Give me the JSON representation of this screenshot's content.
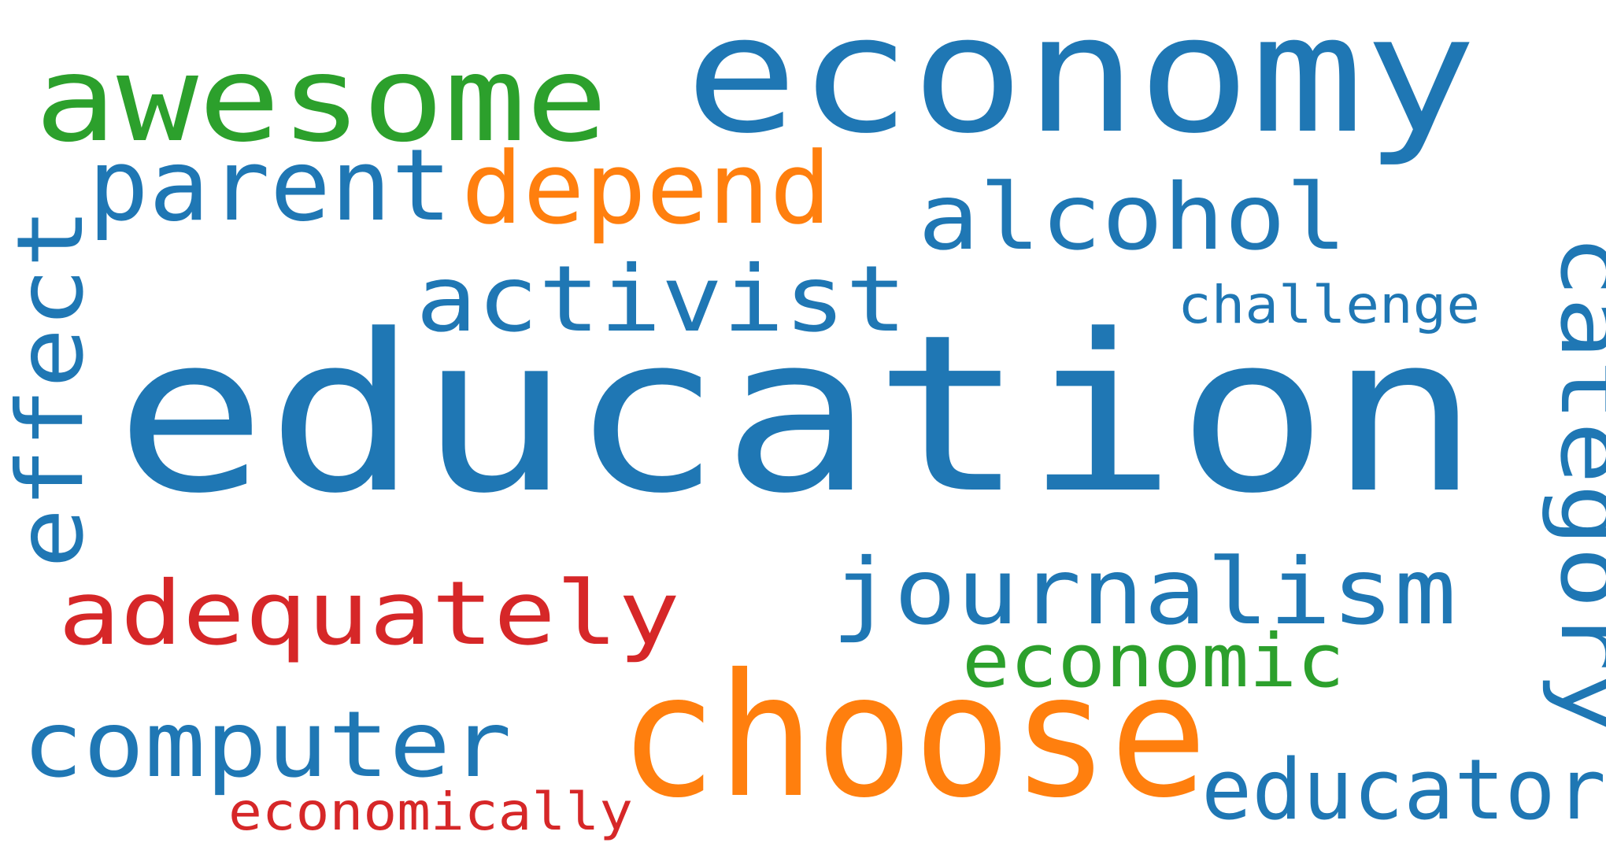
{
  "palette": {
    "blue": "#1f77b4",
    "orange": "#ff7f0e",
    "green": "#2ca02c",
    "red": "#d62728"
  },
  "words": [
    {
      "id": "education",
      "text": "education",
      "color": "blue"
    },
    {
      "id": "economy",
      "text": "economy",
      "color": "blue"
    },
    {
      "id": "awesome",
      "text": "awesome",
      "color": "green"
    },
    {
      "id": "parent",
      "text": "parent",
      "color": "blue"
    },
    {
      "id": "depend",
      "text": "depend",
      "color": "orange"
    },
    {
      "id": "alcohol",
      "text": "alcohol",
      "color": "blue"
    },
    {
      "id": "activist",
      "text": "activist",
      "color": "blue"
    },
    {
      "id": "challenge",
      "text": "challenge",
      "color": "blue"
    },
    {
      "id": "effect",
      "text": "effect",
      "color": "blue"
    },
    {
      "id": "category",
      "text": "category",
      "color": "blue"
    },
    {
      "id": "journalism",
      "text": "journalism",
      "color": "blue"
    },
    {
      "id": "adequately",
      "text": "adequately",
      "color": "red"
    },
    {
      "id": "economic",
      "text": "economic",
      "color": "green"
    },
    {
      "id": "choose",
      "text": "choose",
      "color": "orange"
    },
    {
      "id": "computer",
      "text": "computer",
      "color": "blue"
    },
    {
      "id": "educator",
      "text": "educator",
      "color": "blue"
    },
    {
      "id": "economically",
      "text": "economically",
      "color": "red"
    }
  ]
}
